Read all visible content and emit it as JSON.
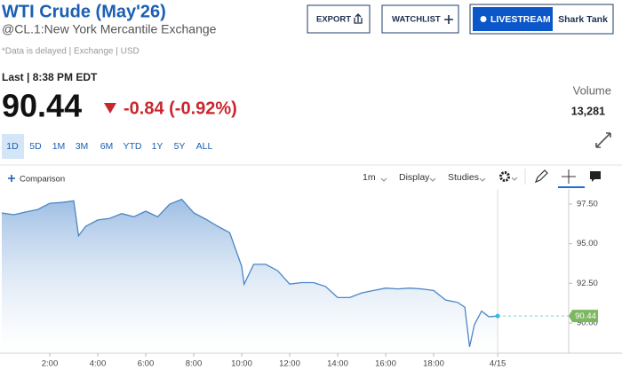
{
  "header": {
    "title": "WTI Crude (May'26)",
    "subtitle": "@CL.1:New York Mercantile Exchange",
    "disclaimer": "*Data is delayed | Exchange | USD"
  },
  "buttons": {
    "export": "EXPORT",
    "watchlist": "WATCHLIST",
    "livestream": "LIVESTREAM",
    "show": "Shark Tank"
  },
  "quote": {
    "last_label": "Last | 8:38 PM EDT",
    "price": "90.44",
    "change": "-0.84 (-0.92%)",
    "volume_label": "Volume",
    "volume": "13,281"
  },
  "ranges": [
    "1D",
    "5D",
    "1M",
    "3M",
    "6M",
    "YTD",
    "1Y",
    "5Y",
    "ALL"
  ],
  "selected_range": 0,
  "toolbar": {
    "comparison": "Comparison",
    "interval": "1m",
    "display": "Display",
    "studies": "Studies"
  },
  "chart_data": {
    "type": "line",
    "color": "#4a86c5",
    "last_label_color": "#7cb860",
    "x": [
      0,
      0.5,
      1,
      1.5,
      2,
      2.5,
      3,
      3.2,
      3.5,
      4,
      4.5,
      5,
      5.5,
      6,
      6.5,
      7,
      7.5,
      8,
      8.5,
      9,
      9.5,
      10,
      10.1,
      10.5,
      11,
      11.5,
      12,
      12.5,
      13,
      13.5,
      14,
      14.5,
      15,
      15.5,
      16,
      16.5,
      17,
      17.5,
      18,
      18.5,
      19,
      19.3,
      19.5,
      19.7,
      20,
      20.3,
      20.67
    ],
    "values": [
      96.94,
      96.83,
      97.0,
      97.16,
      97.55,
      97.6,
      97.7,
      95.5,
      96.1,
      96.5,
      96.6,
      96.9,
      96.7,
      97.05,
      96.7,
      97.5,
      97.8,
      96.95,
      96.55,
      96.1,
      95.7,
      93.57,
      92.44,
      93.7,
      93.7,
      93.3,
      92.45,
      92.55,
      92.55,
      92.3,
      91.6,
      91.6,
      91.9,
      92.05,
      92.2,
      92.15,
      92.2,
      92.15,
      92.05,
      91.45,
      91.3,
      91.0,
      88.5,
      89.9,
      90.75,
      90.4,
      90.44
    ],
    "xlim": [
      0,
      23.63
    ],
    "xticks": [
      {
        "value": 2,
        "label": "2:00"
      },
      {
        "value": 4,
        "label": "4:00"
      },
      {
        "value": 6,
        "label": "6:00"
      },
      {
        "value": 8,
        "label": "8:00"
      },
      {
        "value": 10,
        "label": "10:00"
      },
      {
        "value": 12,
        "label": "12:00"
      },
      {
        "value": 14,
        "label": "14:00"
      },
      {
        "value": 16,
        "label": "16:00"
      },
      {
        "value": 18,
        "label": "18:00"
      },
      {
        "value": 20.67,
        "label": "4/15"
      }
    ],
    "ylim": [
      88.1,
      98.45
    ],
    "yticks": [
      {
        "value": 90,
        "label": "90.00"
      },
      {
        "value": 92.5,
        "label": "92.50"
      },
      {
        "value": 95,
        "label": "95.00"
      },
      {
        "value": 97.5,
        "label": "97.50"
      }
    ],
    "grid": false
  }
}
